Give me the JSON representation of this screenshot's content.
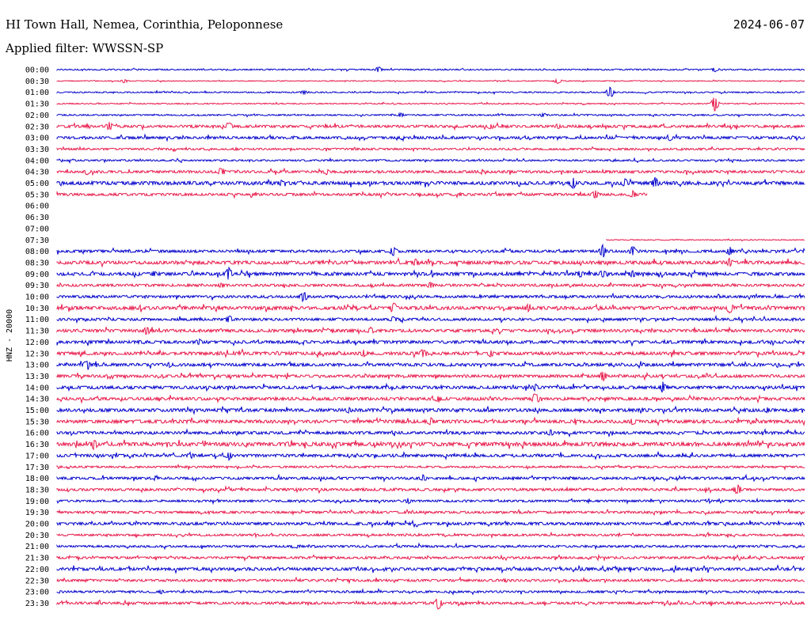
{
  "header": {
    "station": "HI Town Hall, Nemea, Corinthia, Peloponnese",
    "date": "2024-06-07",
    "filter": "Applied filter: WWSSN-SP"
  },
  "chart_data": {
    "type": "line",
    "ylabel": "HNZ - 20000",
    "colors": {
      "odd": "#0000cc",
      "even": "#e8194a"
    },
    "rows": [
      {
        "label": "00:00",
        "start": 0,
        "end": 1,
        "noise": 0.6,
        "events": [
          [
            0.43,
            4
          ],
          [
            0.88,
            3
          ]
        ]
      },
      {
        "label": "00:30",
        "start": 0,
        "end": 1,
        "noise": 0.4,
        "events": [
          [
            0.09,
            3
          ],
          [
            0.67,
            4
          ]
        ]
      },
      {
        "label": "01:00",
        "start": 0,
        "end": 1,
        "noise": 0.6,
        "events": [
          [
            0.33,
            3
          ],
          [
            0.74,
            8
          ]
        ]
      },
      {
        "label": "01:30",
        "start": 0,
        "end": 1,
        "noise": 0.5,
        "events": [
          [
            0.88,
            10
          ]
        ]
      },
      {
        "label": "02:00",
        "start": 0,
        "end": 1,
        "noise": 0.7,
        "events": [
          [
            0.46,
            3
          ],
          [
            0.65,
            3
          ]
        ]
      },
      {
        "label": "02:30",
        "start": 0,
        "end": 1,
        "noise": 1.2,
        "events": [
          [
            0.07,
            6
          ],
          [
            0.23,
            7
          ],
          [
            0.58,
            4
          ],
          [
            0.67,
            4
          ]
        ]
      },
      {
        "label": "03:00",
        "start": 0,
        "end": 1,
        "noise": 1.2,
        "events": [
          [
            0.82,
            5
          ]
        ]
      },
      {
        "label": "03:30",
        "start": 0,
        "end": 1,
        "noise": 0.9,
        "events": [
          [
            0.24,
            2
          ]
        ]
      },
      {
        "label": "04:00",
        "start": 0,
        "end": 1,
        "noise": 0.8,
        "events": []
      },
      {
        "label": "04:30",
        "start": 0,
        "end": 1,
        "noise": 1.2,
        "events": [
          [
            0.04,
            4
          ],
          [
            0.22,
            6
          ],
          [
            0.36,
            4
          ]
        ]
      },
      {
        "label": "05:00",
        "start": 0,
        "end": 1,
        "noise": 1.6,
        "events": [
          [
            0.3,
            4
          ],
          [
            0.69,
            8
          ],
          [
            0.76,
            6
          ],
          [
            0.8,
            8
          ]
        ]
      },
      {
        "label": "05:30",
        "start": 0,
        "end": 0.79,
        "noise": 1.2,
        "events": [
          [
            0.54,
            3
          ],
          [
            0.72,
            6
          ],
          [
            0.77,
            5
          ]
        ]
      },
      {
        "label": "06:00",
        "start": 0,
        "end": 0,
        "noise": 0,
        "events": []
      },
      {
        "label": "06:30",
        "start": 0,
        "end": 0,
        "noise": 0,
        "events": []
      },
      {
        "label": "07:00",
        "start": 0,
        "end": 0,
        "noise": 0,
        "events": []
      },
      {
        "label": "07:30",
        "start": 0.735,
        "end": 1,
        "noise": 0.4,
        "events": []
      },
      {
        "label": "08:00",
        "start": 0,
        "end": 1,
        "noise": 1.2,
        "events": [
          [
            0.45,
            7
          ],
          [
            0.73,
            9
          ],
          [
            0.77,
            7
          ],
          [
            0.9,
            6
          ]
        ]
      },
      {
        "label": "08:30",
        "start": 0,
        "end": 1,
        "noise": 1.6,
        "events": [
          [
            0.48,
            6
          ],
          [
            0.9,
            6
          ]
        ]
      },
      {
        "label": "09:00",
        "start": 0,
        "end": 1,
        "noise": 1.5,
        "events": [
          [
            0.13,
            4
          ],
          [
            0.23,
            9
          ],
          [
            0.7,
            5
          ],
          [
            0.73,
            6
          ],
          [
            0.77,
            5
          ]
        ]
      },
      {
        "label": "09:30",
        "start": 0,
        "end": 1,
        "noise": 1.2,
        "events": [
          [
            0.22,
            4
          ],
          [
            0.5,
            5
          ]
        ]
      },
      {
        "label": "10:00",
        "start": 0,
        "end": 1,
        "noise": 1.2,
        "events": [
          [
            0.33,
            8
          ]
        ]
      },
      {
        "label": "10:30",
        "start": 0,
        "end": 1,
        "noise": 1.6,
        "events": [
          [
            0.1,
            3
          ],
          [
            0.45,
            8
          ],
          [
            0.63,
            5
          ],
          [
            0.9,
            8
          ]
        ]
      },
      {
        "label": "11:00",
        "start": 0,
        "end": 1,
        "noise": 1.2,
        "events": [
          [
            0.23,
            6
          ],
          [
            0.45,
            5
          ]
        ]
      },
      {
        "label": "11:30",
        "start": 0,
        "end": 1,
        "noise": 1.4,
        "events": [
          [
            0.12,
            6
          ],
          [
            0.42,
            5
          ]
        ]
      },
      {
        "label": "12:00",
        "start": 0,
        "end": 1,
        "noise": 1.4,
        "events": [
          [
            0.19,
            5
          ]
        ]
      },
      {
        "label": "12:30",
        "start": 0,
        "end": 1,
        "noise": 1.5,
        "events": [
          [
            0.41,
            5
          ],
          [
            0.49,
            7
          ],
          [
            0.58,
            5
          ]
        ]
      },
      {
        "label": "13:00",
        "start": 0,
        "end": 1,
        "noise": 1.4,
        "events": [
          [
            0.04,
            8
          ],
          [
            0.15,
            4
          ]
        ]
      },
      {
        "label": "13:30",
        "start": 0,
        "end": 1,
        "noise": 1.3,
        "events": [
          [
            0.73,
            8
          ]
        ]
      },
      {
        "label": "14:00",
        "start": 0,
        "end": 1,
        "noise": 1.4,
        "events": [
          [
            0.64,
            5
          ],
          [
            0.81,
            8
          ]
        ]
      },
      {
        "label": "14:30",
        "start": 0,
        "end": 1,
        "noise": 1.4,
        "events": [
          [
            0.51,
            5
          ],
          [
            0.64,
            9
          ]
        ]
      },
      {
        "label": "15:00",
        "start": 0,
        "end": 1,
        "noise": 1.5,
        "events": [
          [
            0.39,
            5
          ],
          [
            0.95,
            4
          ]
        ]
      },
      {
        "label": "15:30",
        "start": 0,
        "end": 1,
        "noise": 1.5,
        "events": [
          [
            0.5,
            6
          ],
          [
            0.77,
            5
          ]
        ]
      },
      {
        "label": "16:00",
        "start": 0,
        "end": 1,
        "noise": 1.3,
        "events": [
          [
            0.66,
            5
          ]
        ]
      },
      {
        "label": "16:30",
        "start": 0,
        "end": 1,
        "noise": 1.8,
        "events": [
          [
            0.05,
            8
          ],
          [
            0.31,
            4
          ]
        ]
      },
      {
        "label": "17:00",
        "start": 0,
        "end": 1,
        "noise": 1.3,
        "events": [
          [
            0.18,
            4
          ],
          [
            0.23,
            6
          ]
        ]
      },
      {
        "label": "17:30",
        "start": 0,
        "end": 1,
        "noise": 0.9,
        "events": []
      },
      {
        "label": "18:00",
        "start": 0,
        "end": 1,
        "noise": 1.2,
        "events": [
          [
            0.49,
            5
          ]
        ]
      },
      {
        "label": "18:30",
        "start": 0,
        "end": 1,
        "noise": 1.2,
        "events": [
          [
            0.91,
            8
          ]
        ]
      },
      {
        "label": "19:00",
        "start": 0,
        "end": 1,
        "noise": 1.0,
        "events": [
          [
            0.47,
            4
          ]
        ]
      },
      {
        "label": "19:30",
        "start": 0,
        "end": 1,
        "noise": 1.1,
        "events": []
      },
      {
        "label": "20:00",
        "start": 0,
        "end": 1,
        "noise": 1.3,
        "events": []
      },
      {
        "label": "20:30",
        "start": 0,
        "end": 1,
        "noise": 1.0,
        "events": []
      },
      {
        "label": "21:00",
        "start": 0,
        "end": 1,
        "noise": 1.0,
        "events": [
          [
            0.32,
            3
          ]
        ]
      },
      {
        "label": "21:30",
        "start": 0,
        "end": 1,
        "noise": 1.1,
        "events": []
      },
      {
        "label": "22:00",
        "start": 0,
        "end": 1,
        "noise": 1.4,
        "events": []
      },
      {
        "label": "22:30",
        "start": 0,
        "end": 1,
        "noise": 1.1,
        "events": [
          [
            0.6,
            3
          ]
        ]
      },
      {
        "label": "23:00",
        "start": 0,
        "end": 1,
        "noise": 1.0,
        "events": [
          [
            0.14,
            3
          ]
        ]
      },
      {
        "label": "23:30",
        "start": 0,
        "end": 1,
        "noise": 1.2,
        "events": [
          [
            0.51,
            9
          ]
        ]
      }
    ]
  }
}
